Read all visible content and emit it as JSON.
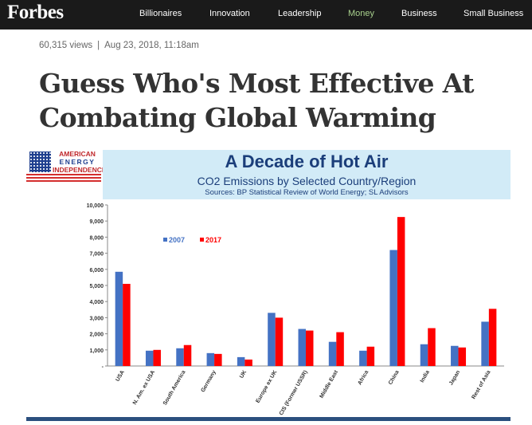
{
  "header": {
    "logo": "Forbes",
    "nav": [
      "Billionaires",
      "Innovation",
      "Leadership",
      "Money",
      "Business",
      "Small Business"
    ],
    "active_nav": "Money",
    "active_color": "#a8d08d"
  },
  "article": {
    "views": "60,315 views",
    "separator": "|",
    "date": "Aug 23, 2018, 11:18am",
    "title": "Guess Who's Most Effective At Combating Global Warming"
  },
  "figure": {
    "logo_lines": [
      "AMERICAN",
      "ENERGY",
      "INDEPENDENCE"
    ],
    "banner_title": "A Decade of Hot Air",
    "banner_subtitle": "CO2 Emissions by Selected Country/Region",
    "banner_source": "Sources: BP Statistical Review of World Energy; SL Advisors"
  },
  "chart_data": {
    "type": "bar",
    "categories": [
      "USA",
      "N. Am. ex USA",
      "South America",
      "Germany",
      "UK",
      "Europe ex UK",
      "CIS (Former USSR)",
      "Middle East",
      "Africa",
      "China",
      "India",
      "Japan",
      "Rest of Asia"
    ],
    "series": [
      {
        "name": "2007",
        "color": "#4472c4",
        "values": [
          5850,
          950,
          1100,
          800,
          550,
          3300,
          2300,
          1500,
          950,
          7200,
          1350,
          1250,
          2750
        ]
      },
      {
        "name": "2017",
        "color": "#ff0000",
        "values": [
          5100,
          1000,
          1300,
          750,
          400,
          3000,
          2200,
          2100,
          1200,
          9250,
          2350,
          1150,
          3550
        ]
      }
    ],
    "ylim": [
      0,
      10000
    ],
    "yticks": [
      "10,000",
      "9,000",
      "8,000",
      "7,000",
      "6,000",
      "5,000",
      "4,000",
      "3,000",
      "2,000",
      "1,000",
      "-"
    ],
    "legend_position": "top-left",
    "grid": false
  }
}
